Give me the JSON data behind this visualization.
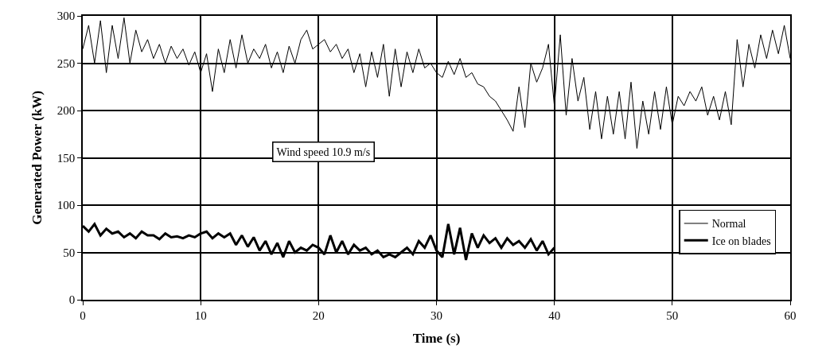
{
  "chart_data": {
    "type": "line",
    "xlabel": "Time (s)",
    "ylabel": "Generated Power (kW)",
    "xlim": [
      0,
      60
    ],
    "xticks": [
      0,
      10,
      20,
      30,
      40,
      50,
      60
    ],
    "ylim": [
      0,
      300
    ],
    "yticks": [
      0,
      50,
      100,
      150,
      200,
      250,
      300
    ],
    "grid": true,
    "legend": "bottom right",
    "marker": "none",
    "line_style": "solid",
    "annotations": [
      "Wind speed 10.9 m/s"
    ],
    "series": [
      {
        "name": "Normal",
        "color": "#000000",
        "x": [
          0,
          0.5,
          1,
          1.5,
          2,
          2.5,
          3,
          3.5,
          4,
          4.5,
          5,
          5.5,
          6,
          6.5,
          7,
          7.5,
          8,
          8.5,
          9,
          9.5,
          10,
          10.5,
          11,
          11.5,
          12,
          12.5,
          13,
          13.5,
          14,
          14.5,
          15,
          15.5,
          16,
          16.5,
          17,
          17.5,
          18,
          18.5,
          19,
          19.5,
          20,
          20.5,
          21,
          21.5,
          22,
          22.5,
          23,
          23.5,
          24,
          24.5,
          25,
          25.5,
          26,
          26.5,
          27,
          27.5,
          28,
          28.5,
          29,
          29.5,
          30,
          30.5,
          31,
          31.5,
          32,
          32.5,
          33,
          33.5,
          34,
          34.5,
          35,
          35.5,
          36,
          36.5,
          37,
          37.5,
          38,
          38.5,
          39,
          39.5,
          40,
          40.5,
          41,
          41.5,
          42,
          42.5,
          43,
          43.5,
          44,
          44.5,
          45,
          45.5,
          46,
          46.5,
          47,
          47.5,
          48,
          48.5,
          49,
          49.5,
          50,
          50.5,
          51,
          51.5,
          52,
          52.5,
          53,
          53.5,
          54,
          54.5,
          55,
          55.5,
          56,
          56.5,
          57,
          57.5,
          58,
          58.5,
          59,
          59.5,
          60
        ],
        "values": [
          265,
          290,
          250,
          295,
          240,
          290,
          255,
          298,
          250,
          285,
          262,
          275,
          255,
          270,
          250,
          268,
          255,
          265,
          248,
          262,
          240,
          260,
          220,
          265,
          240,
          275,
          245,
          280,
          250,
          265,
          255,
          270,
          245,
          262,
          240,
          268,
          250,
          275,
          285,
          265,
          270,
          275,
          262,
          270,
          255,
          265,
          240,
          260,
          225,
          262,
          235,
          270,
          215,
          265,
          225,
          262,
          240,
          265,
          245,
          250,
          240,
          235,
          252,
          238,
          255,
          235,
          240,
          228,
          225,
          215,
          210,
          200,
          190,
          178,
          225,
          182,
          250,
          230,
          245,
          270,
          205,
          280,
          195,
          255,
          210,
          235,
          180,
          220,
          170,
          215,
          175,
          220,
          170,
          230,
          160,
          210,
          175,
          220,
          180,
          225,
          185,
          215,
          205,
          220,
          210,
          225,
          195,
          215,
          190,
          220,
          185,
          275,
          225,
          270,
          245,
          280,
          255,
          285,
          260,
          290,
          255
        ]
      },
      {
        "name": "Ice on blades",
        "color": "#000000",
        "x": [
          0,
          0.5,
          1,
          1.5,
          2,
          2.5,
          3,
          3.5,
          4,
          4.5,
          5,
          5.5,
          6,
          6.5,
          7,
          7.5,
          8,
          8.5,
          9,
          9.5,
          10,
          10.5,
          11,
          11.5,
          12,
          12.5,
          13,
          13.5,
          14,
          14.5,
          15,
          15.5,
          16,
          16.5,
          17,
          17.5,
          18,
          18.5,
          19,
          19.5,
          20,
          20.5,
          21,
          21.5,
          22,
          22.5,
          23,
          23.5,
          24,
          24.5,
          25,
          25.5,
          26,
          26.5,
          27,
          27.5,
          28,
          28.5,
          29,
          29.5,
          30,
          30.5,
          31,
          31.5,
          32,
          32.5,
          33,
          33.5,
          34,
          34.5,
          35,
          35.5,
          36,
          36.5,
          37,
          37.5,
          38,
          38.5,
          39,
          39.5,
          40
        ],
        "values": [
          78,
          72,
          80,
          68,
          75,
          70,
          72,
          66,
          70,
          65,
          72,
          68,
          68,
          64,
          70,
          66,
          67,
          65,
          68,
          66,
          70,
          72,
          65,
          70,
          66,
          70,
          58,
          68,
          56,
          66,
          52,
          62,
          48,
          60,
          45,
          62,
          50,
          55,
          52,
          58,
          55,
          48,
          68,
          50,
          62,
          48,
          58,
          52,
          55,
          48,
          52,
          45,
          48,
          45,
          50,
          55,
          48,
          62,
          55,
          68,
          52,
          45,
          80,
          48,
          76,
          42,
          70,
          55,
          68,
          60,
          65,
          55,
          65,
          58,
          62,
          55,
          64,
          52,
          62,
          48,
          55
        ]
      }
    ]
  }
}
